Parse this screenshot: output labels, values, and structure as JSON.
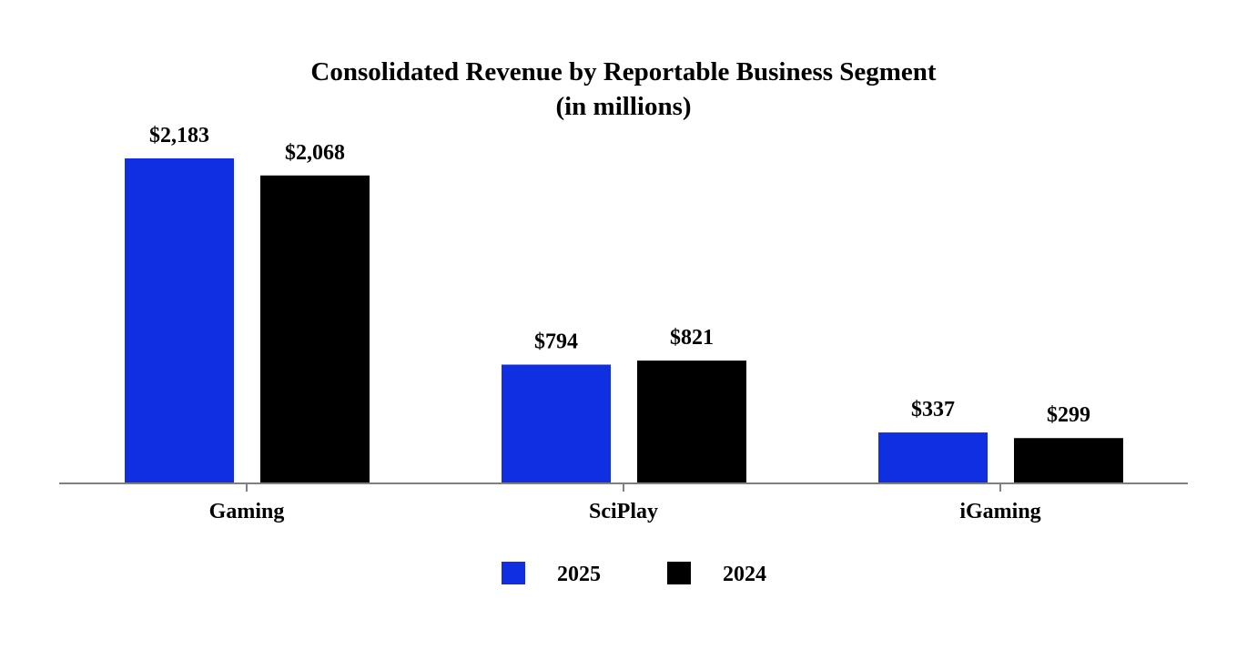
{
  "chart_data": {
    "type": "bar",
    "title": "Consolidated Revenue by Reportable Business Segment",
    "subtitle": "(in millions)",
    "categories": [
      "Gaming",
      "SciPlay",
      "iGaming"
    ],
    "series": [
      {
        "name": "2025",
        "color": "#0f2fe0",
        "values": [
          2183,
          794,
          337
        ],
        "labels": [
          "$2,183",
          "$794",
          "$337"
        ]
      },
      {
        "name": "2024",
        "color": "#000000",
        "values": [
          2068,
          821,
          299
        ],
        "labels": [
          "$2,068",
          "$821",
          "$299"
        ]
      }
    ],
    "xlabel": "",
    "ylabel": "",
    "ylim": [
      0,
      2183
    ],
    "grid": false,
    "legend": "bottom-center"
  }
}
